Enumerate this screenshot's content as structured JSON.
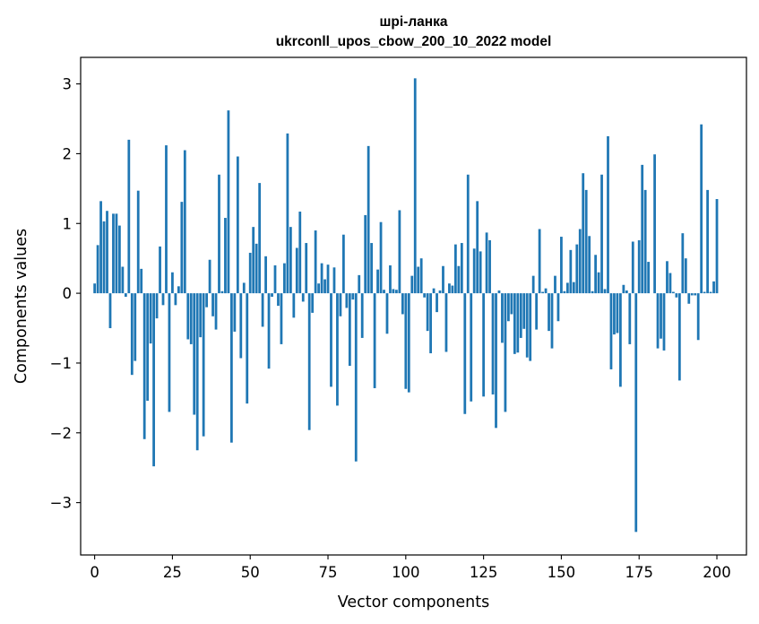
{
  "chart_data": {
    "type": "bar",
    "title": "шрі-ланка",
    "subtitle": "ukrconll_upos_cbow_200_10_2022 model",
    "xlabel": "Vector components",
    "ylabel": "Components values",
    "xlim": [
      -4.5,
      209.5
    ],
    "ylim": [
      -3.75,
      3.38
    ],
    "xticks": [
      0,
      25,
      50,
      75,
      100,
      125,
      150,
      175,
      200
    ],
    "yticks": [
      -3,
      -2,
      -1,
      0,
      1,
      2,
      3
    ],
    "xtick_labels": [
      "0",
      "25",
      "50",
      "75",
      "100",
      "125",
      "150",
      "175",
      "200"
    ],
    "ytick_labels": [
      "−3",
      "−2",
      "−1",
      "0",
      "1",
      "2",
      "3"
    ],
    "grid": false,
    "bar_color": "#1f77b4",
    "values": [
      0.14,
      0.69,
      1.32,
      1.03,
      1.18,
      -0.5,
      1.14,
      1.14,
      0.97,
      0.38,
      -0.05,
      2.2,
      -1.17,
      -0.97,
      1.47,
      0.35,
      -2.09,
      -1.54,
      -0.72,
      -2.48,
      -0.36,
      0.67,
      -0.17,
      2.12,
      -1.7,
      0.3,
      -0.17,
      0.1,
      1.31,
      2.05,
      -0.66,
      -0.73,
      -1.74,
      -2.25,
      -0.63,
      -2.05,
      -0.2,
      0.48,
      -0.33,
      -0.52,
      1.7,
      0.03,
      1.08,
      2.62,
      -2.14,
      -0.55,
      1.96,
      -0.93,
      0.15,
      -1.58,
      0.58,
      0.95,
      0.71,
      1.58,
      -0.48,
      0.53,
      -1.08,
      -0.05,
      0.4,
      -0.18,
      -0.73,
      0.43,
      2.29,
      0.95,
      -0.35,
      0.65,
      1.17,
      -0.12,
      0.72,
      -1.96,
      -0.28,
      0.9,
      0.14,
      0.43,
      0.2,
      0.41,
      -1.34,
      0.37,
      -1.61,
      -0.33,
      0.84,
      -0.21,
      -1.04,
      -0.09,
      -2.41,
      0.26,
      -0.64,
      1.12,
      2.11,
      0.72,
      -1.36,
      0.34,
      1.02,
      0.05,
      -0.58,
      0.4,
      0.06,
      0.05,
      1.19,
      -0.3,
      -1.37,
      -1.42,
      0.25,
      3.08,
      0.38,
      0.5,
      -0.06,
      -0.54,
      -0.86,
      0.07,
      -0.27,
      0.04,
      0.39,
      -0.84,
      0.14,
      0.11,
      0.7,
      0.39,
      0.72,
      -1.73,
      1.7,
      -1.55,
      0.64,
      1.32,
      0.6,
      -1.48,
      0.87,
      0.76,
      -1.45,
      -1.93,
      0.04,
      -0.71,
      -1.7,
      -0.4,
      -0.3,
      -0.87,
      -0.85,
      -0.64,
      -0.51,
      -0.92,
      -0.97,
      0.25,
      -0.52,
      0.92,
      0.02,
      0.07,
      -0.54,
      -0.79,
      0.25,
      -0.4,
      0.81,
      0.03,
      0.15,
      0.62,
      0.16,
      0.7,
      0.92,
      1.72,
      1.48,
      0.82,
      0.03,
      0.55,
      0.3,
      1.7,
      0.06,
      2.25,
      -1.09,
      -0.59,
      -0.57,
      -1.34,
      0.12,
      0.04,
      -0.73,
      0.74,
      -3.42,
      0.76,
      1.84,
      1.48,
      0.45,
      0.0,
      1.99,
      -0.79,
      -0.65,
      -0.82,
      0.46,
      0.29,
      0.02,
      -0.06,
      -1.25,
      0.86,
      0.5,
      -0.15,
      -0.03,
      -0.03,
      -0.67,
      2.42,
      0.02,
      1.48,
      0.02,
      0.17,
      1.35
    ]
  }
}
